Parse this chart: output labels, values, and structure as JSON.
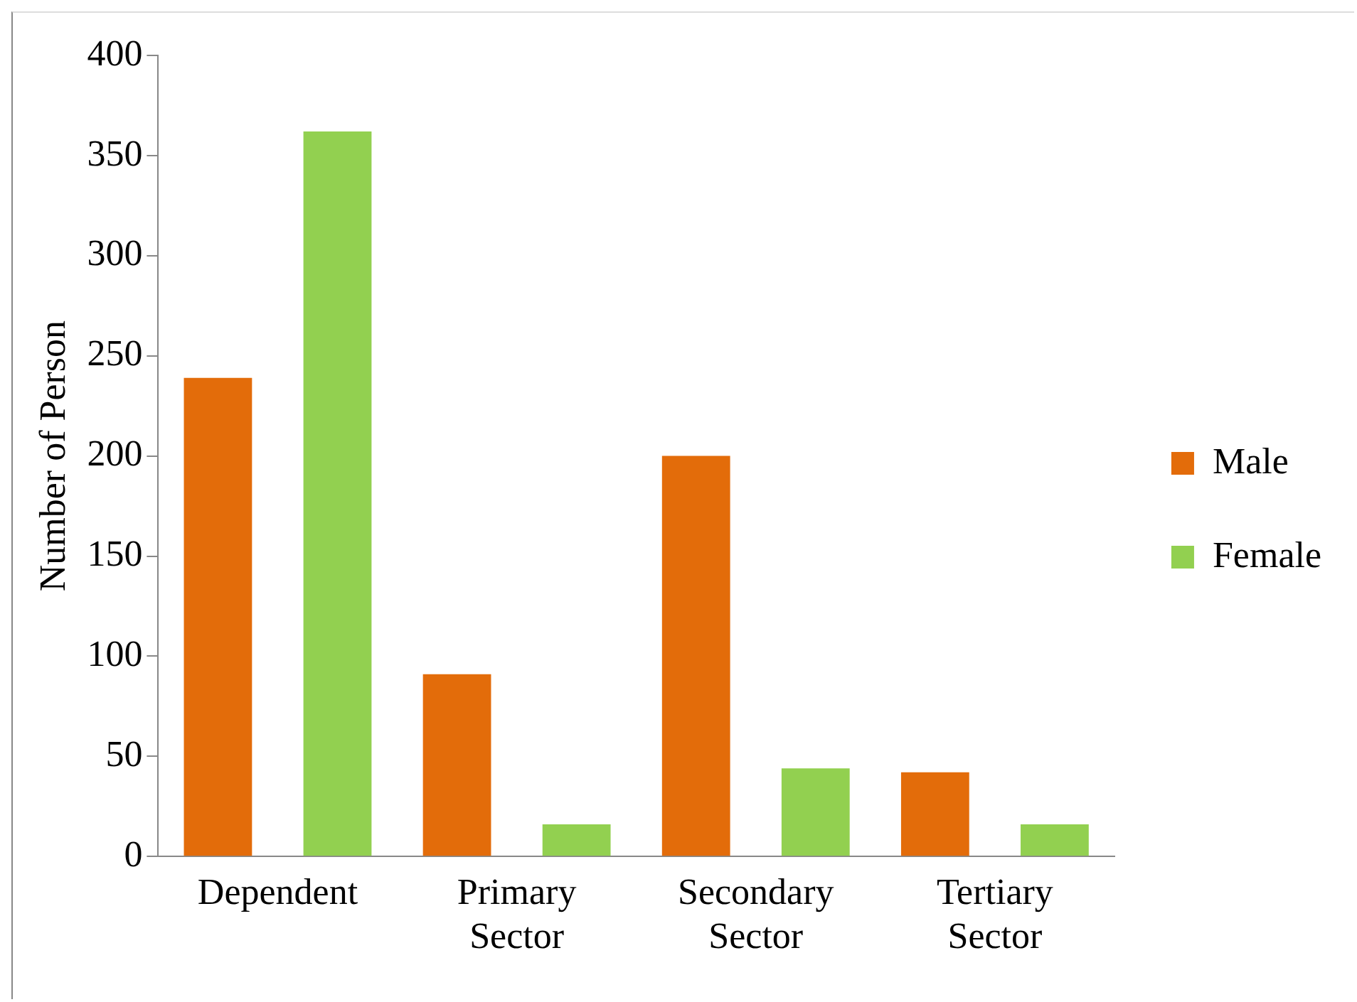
{
  "chart_data": {
    "type": "bar",
    "ylabel": "Number of Person",
    "categories": [
      "Dependent",
      "Primary Sector",
      "Secondary Sector",
      "Tertiary Sector"
    ],
    "series": [
      {
        "name": "Male",
        "color": "#e36c0a",
        "values": [
          239,
          91,
          200,
          42
        ]
      },
      {
        "name": "Female",
        "color": "#92d050",
        "values": [
          362,
          16,
          44,
          16
        ]
      }
    ],
    "ylim": [
      0,
      400
    ],
    "yticks": [
      0,
      50,
      100,
      150,
      200,
      250,
      300,
      350,
      400
    ],
    "grid": false,
    "legend": "right"
  }
}
